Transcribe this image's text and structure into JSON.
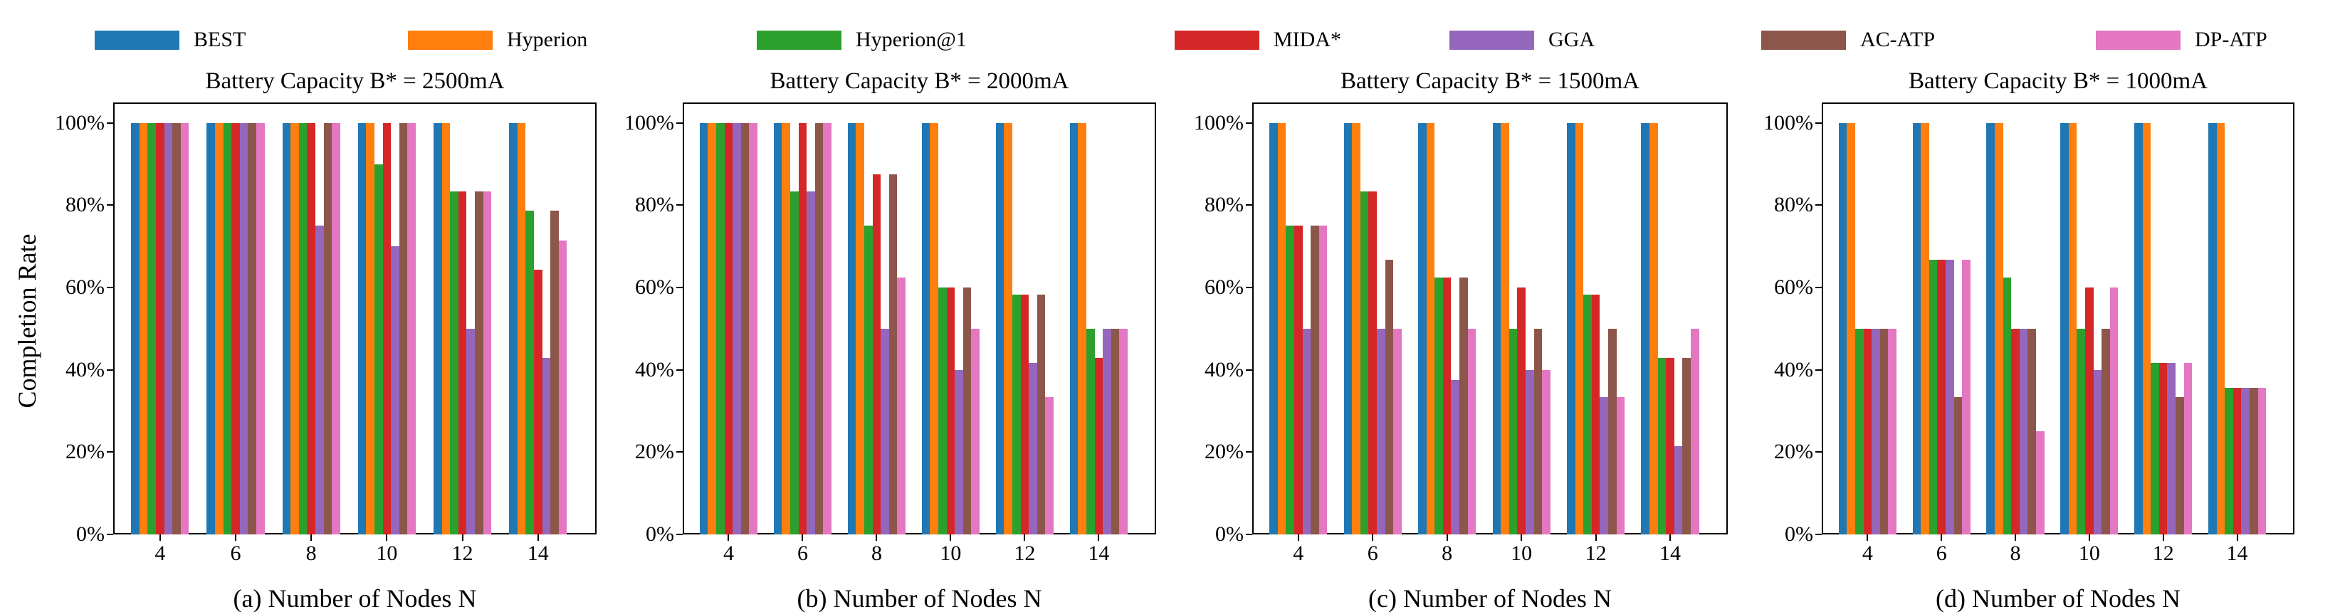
{
  "figure": {
    "ylabel": "Completion Rate",
    "background": "#ffffff",
    "axis_color": "#000000"
  },
  "legend": {
    "position": "top",
    "entries": [
      {
        "label": "BEST",
        "color": "#1f77b4"
      },
      {
        "label": "Hyperion",
        "color": "#ff7f0e"
      },
      {
        "label": "Hyperion@1",
        "color": "#2ca02c"
      },
      {
        "label": "MIDA*",
        "color": "#d62728"
      },
      {
        "label": "GGA",
        "color": "#9467bd"
      },
      {
        "label": "AC-ATP",
        "color": "#8c564b"
      },
      {
        "label": "DP-ATP",
        "color": "#e377c2"
      }
    ]
  },
  "chart_data": [
    {
      "type": "bar",
      "title": "Battery Capacity B* = 2500mA",
      "xlabel": "(a) Number of Nodes N",
      "ylabel": "Completion Rate",
      "categories": [
        4,
        6,
        8,
        10,
        12,
        14
      ],
      "yticks": [
        0,
        20,
        40,
        60,
        80,
        100
      ],
      "ytick_labels": [
        "0%",
        "20%",
        "40%",
        "60%",
        "80%",
        "100%"
      ],
      "ylim": [
        0,
        105
      ],
      "grid": false,
      "series": [
        {
          "name": "BEST",
          "values": [
            100,
            100,
            100,
            100,
            100,
            100
          ]
        },
        {
          "name": "Hyperion",
          "values": [
            100,
            100,
            100,
            100,
            100,
            100
          ]
        },
        {
          "name": "Hyperion@1",
          "values": [
            100,
            100,
            100,
            90,
            83.3,
            78.6
          ]
        },
        {
          "name": "MIDA*",
          "values": [
            100,
            100,
            100,
            100,
            83.3,
            64.3
          ]
        },
        {
          "name": "GGA",
          "values": [
            100,
            100,
            75,
            70,
            50,
            42.9
          ]
        },
        {
          "name": "AC-ATP",
          "values": [
            100,
            100,
            100,
            100,
            83.3,
            78.6
          ]
        },
        {
          "name": "DP-ATP",
          "values": [
            100,
            100,
            100,
            100,
            83.3,
            71.4
          ]
        }
      ]
    },
    {
      "type": "bar",
      "title": "Battery Capacity B* = 2000mA",
      "xlabel": "(b) Number of Nodes N",
      "ylabel": "",
      "categories": [
        4,
        6,
        8,
        10,
        12,
        14
      ],
      "yticks": [
        0,
        20,
        40,
        60,
        80,
        100
      ],
      "ytick_labels": [
        "0%",
        "20%",
        "40%",
        "60%",
        "80%",
        "100%"
      ],
      "ylim": [
        0,
        105
      ],
      "grid": false,
      "series": [
        {
          "name": "BEST",
          "values": [
            100,
            100,
            100,
            100,
            100,
            100
          ]
        },
        {
          "name": "Hyperion",
          "values": [
            100,
            100,
            100,
            100,
            100,
            100
          ]
        },
        {
          "name": "Hyperion@1",
          "values": [
            100,
            83.3,
            75,
            60,
            58.3,
            50
          ]
        },
        {
          "name": "MIDA*",
          "values": [
            100,
            100,
            87.5,
            60,
            58.3,
            42.9
          ]
        },
        {
          "name": "GGA",
          "values": [
            100,
            83.3,
            50,
            40,
            41.7,
            50
          ]
        },
        {
          "name": "AC-ATP",
          "values": [
            100,
            100,
            87.5,
            60,
            58.3,
            50
          ]
        },
        {
          "name": "DP-ATP",
          "values": [
            100,
            100,
            62.5,
            50,
            33.3,
            50
          ]
        }
      ]
    },
    {
      "type": "bar",
      "title": "Battery Capacity B* = 1500mA",
      "xlabel": "(c) Number of Nodes N",
      "ylabel": "",
      "categories": [
        4,
        6,
        8,
        10,
        12,
        14
      ],
      "yticks": [
        0,
        20,
        40,
        60,
        80,
        100
      ],
      "ytick_labels": [
        "0%",
        "20%",
        "40%",
        "60%",
        "80%",
        "100%"
      ],
      "ylim": [
        0,
        105
      ],
      "grid": false,
      "series": [
        {
          "name": "BEST",
          "values": [
            100,
            100,
            100,
            100,
            100,
            100
          ]
        },
        {
          "name": "Hyperion",
          "values": [
            100,
            100,
            100,
            100,
            100,
            100
          ]
        },
        {
          "name": "Hyperion@1",
          "values": [
            75,
            83.3,
            62.5,
            50,
            58.3,
            42.9
          ]
        },
        {
          "name": "MIDA*",
          "values": [
            75,
            83.3,
            62.5,
            60,
            58.3,
            42.9
          ]
        },
        {
          "name": "GGA",
          "values": [
            50,
            50,
            37.5,
            40,
            33.3,
            21.4
          ]
        },
        {
          "name": "AC-ATP",
          "values": [
            75,
            66.7,
            62.5,
            50,
            50,
            42.9
          ]
        },
        {
          "name": "DP-ATP",
          "values": [
            75,
            50,
            50,
            40,
            33.3,
            50
          ]
        }
      ]
    },
    {
      "type": "bar",
      "title": "Battery Capacity B* = 1000mA",
      "xlabel": "(d) Number of Nodes N",
      "ylabel": "",
      "categories": [
        4,
        6,
        8,
        10,
        12,
        14
      ],
      "yticks": [
        0,
        20,
        40,
        60,
        80,
        100
      ],
      "ytick_labels": [
        "0%",
        "20%",
        "40%",
        "60%",
        "80%",
        "100%"
      ],
      "ylim": [
        0,
        105
      ],
      "grid": false,
      "series": [
        {
          "name": "BEST",
          "values": [
            100,
            100,
            100,
            100,
            100,
            100
          ]
        },
        {
          "name": "Hyperion",
          "values": [
            100,
            100,
            100,
            100,
            100,
            100
          ]
        },
        {
          "name": "Hyperion@1",
          "values": [
            50,
            66.7,
            62.5,
            50,
            41.7,
            35.7
          ]
        },
        {
          "name": "MIDA*",
          "values": [
            50,
            66.7,
            50,
            60,
            41.7,
            35.7
          ]
        },
        {
          "name": "GGA",
          "values": [
            50,
            66.7,
            50,
            40,
            41.7,
            35.7
          ]
        },
        {
          "name": "AC-ATP",
          "values": [
            50,
            33.3,
            50,
            50,
            33.3,
            35.7
          ]
        },
        {
          "name": "DP-ATP",
          "values": [
            50,
            66.7,
            25,
            60,
            41.7,
            35.7
          ]
        }
      ]
    }
  ]
}
